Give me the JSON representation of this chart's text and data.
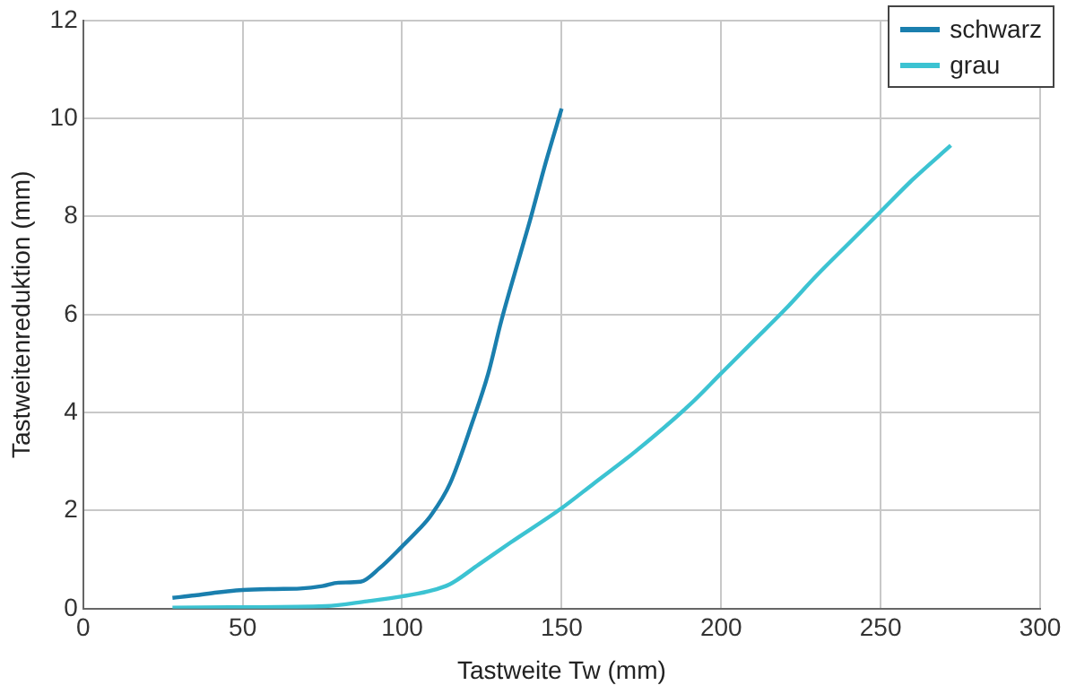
{
  "chart_data": {
    "type": "line",
    "xlabel": "Tastweite Tw (mm)",
    "ylabel": "Tastweitenreduktion (mm)",
    "xlim": [
      0,
      300
    ],
    "xticks": [
      0,
      50,
      100,
      150,
      200,
      250,
      300
    ],
    "ylim": [
      0,
      12
    ],
    "yticks": [
      0,
      2,
      4,
      6,
      8,
      10,
      12
    ],
    "grid": true,
    "legend": "top right",
    "marker": "none",
    "line_style": "solid",
    "series": [
      {
        "name": "schwarz",
        "color": "#1a7fae",
        "x": [
          28,
          35,
          42,
          50,
          60,
          68,
          75,
          80,
          87,
          93,
          100,
          105,
          109,
          115,
          122,
          127,
          131,
          136,
          140,
          145,
          150
        ],
        "values": [
          0.22,
          0.27,
          0.33,
          0.38,
          0.4,
          0.41,
          0.46,
          0.53,
          0.55,
          0.83,
          1.27,
          1.6,
          1.9,
          2.55,
          3.8,
          4.8,
          5.85,
          7.0,
          7.9,
          9.1,
          10.2
        ]
      },
      {
        "name": "grau",
        "color": "#3cc3d2",
        "x": [
          28,
          50,
          76,
          89,
          100,
          108,
          115,
          124,
          134,
          150,
          160,
          173,
          190,
          200,
          210,
          220,
          230,
          240,
          250,
          260,
          272
        ],
        "values": [
          0.02,
          0.03,
          0.05,
          0.15,
          0.25,
          0.35,
          0.5,
          0.9,
          1.35,
          2.05,
          2.55,
          3.2,
          4.15,
          4.8,
          5.45,
          6.1,
          6.8,
          7.45,
          8.1,
          8.75,
          9.45
        ]
      }
    ]
  }
}
